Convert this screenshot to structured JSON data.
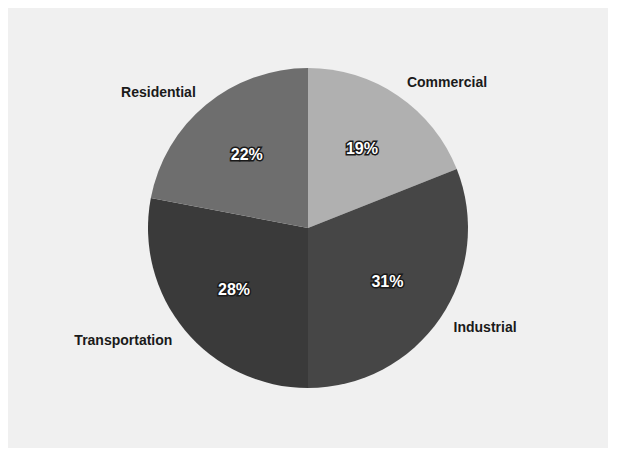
{
  "chart_data": {
    "type": "pie",
    "categories": [
      "Commercial",
      "Industrial",
      "Transportation",
      "Residential"
    ],
    "values": [
      19,
      31,
      28,
      22
    ],
    "value_labels": [
      "19%",
      "31%",
      "28%",
      "22%"
    ],
    "colors": [
      "#b0b0b0",
      "#464646",
      "#3a3a3a",
      "#6e6e6e"
    ],
    "data_labels": true
  }
}
